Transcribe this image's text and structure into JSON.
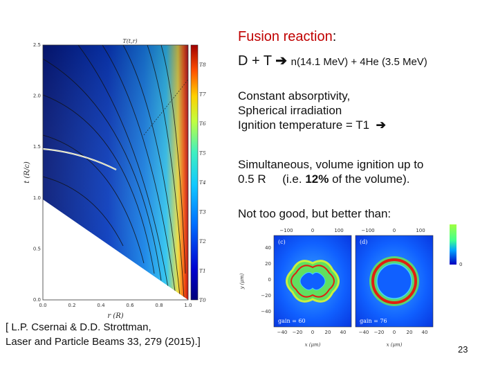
{
  "slide": {
    "title_word": "Fusion reaction",
    "title_colon": ":",
    "reaction_lhs": "D + T",
    "reaction_arrow": "➔",
    "reaction_rhs": "n(14.1 MeV) + 4He (3.5 MeV)",
    "line1": "Constant  absorptivity,",
    "line2": "Spherical irradiation",
    "line3_text": "Ignition temperature = T1",
    "line3_arrow": "➔",
    "line4": "Simultaneous, volume ignition up to",
    "line5_a": "0.5 R     (i.e. ",
    "line5_b": "12%",
    "line5_c": " of the volume).",
    "line6": "Not too good, but better than:",
    "citation_1": "[ L.P. Csernai & D.D. Strottman,",
    "citation_2": "Laser and Particle Beams 33, 279 (2015).]",
    "page_number": "23"
  },
  "left_plot": {
    "top_label": "T(t,r)",
    "xlabel": "r  (R)",
    "ylabel": "t  (R/c)",
    "x_ticks": [
      "0.0",
      "0.2",
      "0.4",
      "0.6",
      "0.8",
      "1.0"
    ],
    "y_ticks": [
      "0.0",
      "0.5",
      "1.0",
      "1.5",
      "2.0",
      "2.5"
    ],
    "colorbar_labels": [
      "T0",
      "T1",
      "T2",
      "T3",
      "T4",
      "T5",
      "T6",
      "T7",
      "T8"
    ],
    "colors": {
      "cold": "#0a1a8c",
      "mid": "#1fb8e8",
      "hot": "#d81a10"
    }
  },
  "right_panels": {
    "x_ticks_top": [
      "−100",
      "0",
      "100",
      "−100",
      "0",
      "100"
    ],
    "y_ticks": [
      "40",
      "20",
      "0",
      "−20",
      "−40"
    ],
    "x_ticks_bottom": [
      "−40",
      "−20",
      "0",
      "20",
      "40",
      "−40",
      "−20",
      "0",
      "20",
      "40"
    ],
    "xlabel": "x (μm)",
    "ylabel": "y (μm)",
    "panel_c_label": "(c)",
    "panel_d_label": "(d)",
    "gain_c": "gain = 60",
    "gain_d": "gain = 76",
    "colorbar_zero": "0"
  }
}
